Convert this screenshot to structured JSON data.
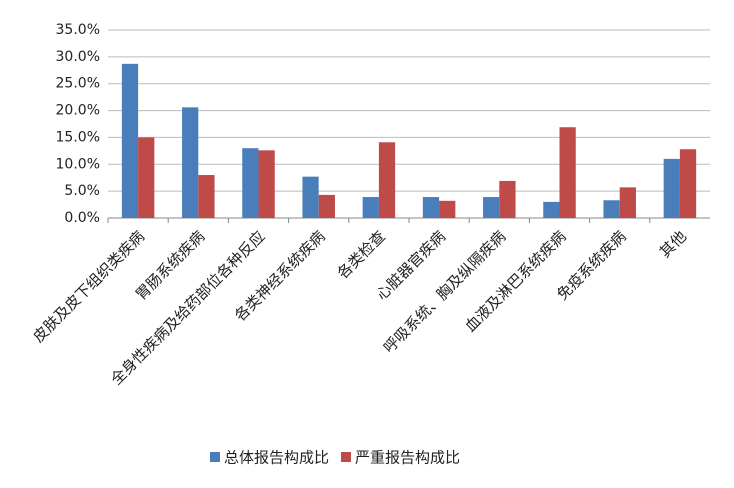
{
  "chart_data": {
    "type": "bar",
    "categories": [
      "皮肤及皮下组织类疾病",
      "胃肠系统疾病",
      "全身性疾病及给药部位各种反应",
      "各类神经系统疾病",
      "各类检查",
      "心脏器官疾病",
      "呼吸系统、胸及纵隔疾病",
      "血液及淋巴系统疾病",
      "免疫系统疾病",
      "其他"
    ],
    "series": [
      {
        "name": "总体报告构成比",
        "color": "#4a7ebb",
        "values": [
          28.7,
          20.6,
          13.0,
          7.7,
          3.9,
          3.9,
          3.9,
          3.0,
          3.3,
          11.0
        ]
      },
      {
        "name": "严重报告构成比",
        "color": "#be4b48",
        "values": [
          15.0,
          8.0,
          12.6,
          4.3,
          14.1,
          3.2,
          6.9,
          16.9,
          5.7,
          12.8
        ]
      }
    ],
    "ylim": [
      0,
      35
    ],
    "yticks": [
      {
        "value": 0,
        "label": "0.0%"
      },
      {
        "value": 5,
        "label": "5.0%"
      },
      {
        "value": 10,
        "label": "10.0%"
      },
      {
        "value": 15,
        "label": "15.0%"
      },
      {
        "value": 20,
        "label": "20.0%"
      },
      {
        "value": 25,
        "label": "25.0%"
      },
      {
        "value": 30,
        "label": "30.0%"
      },
      {
        "value": 35,
        "label": "35.0%"
      }
    ],
    "grid": true,
    "legend": "bottom"
  }
}
